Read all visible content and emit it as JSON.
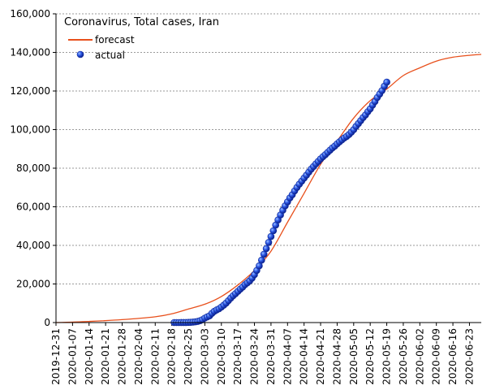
{
  "chart_data": {
    "type": "line",
    "title": "Coronavirus, Total cases, Iran",
    "xlabel": "",
    "ylabel": "",
    "ylim": [
      0,
      160000
    ],
    "y_ticks": [
      "0",
      "20,000",
      "40,000",
      "60,000",
      "80,000",
      "100,000",
      "120,000",
      "140,000",
      "160,000"
    ],
    "x_ticks": [
      "2019-12-31",
      "2020-01-07",
      "2020-01-14",
      "2020-01-21",
      "2020-01-28",
      "2020-02-04",
      "2020-02-11",
      "2020-02-18",
      "2020-02-25",
      "2020-03-03",
      "2020-03-10",
      "2020-03-17",
      "2020-03-24",
      "2020-03-31",
      "2020-04-07",
      "2020-04-14",
      "2020-04-21",
      "2020-04-28",
      "2020-05-05",
      "2020-05-12",
      "2020-05-19",
      "2020-05-26",
      "2020-06-02",
      "2020-06-09",
      "2020-06-16",
      "2020-06-23"
    ],
    "xlim": [
      "2019-12-31",
      "2020-06-28"
    ],
    "grid": "horizontal dashed",
    "legend_position": "top-left",
    "series": [
      {
        "name": "forecast",
        "color": "#e8501c",
        "style": "line",
        "x": [
          "2019-12-31",
          "2020-01-14",
          "2020-01-28",
          "2020-02-11",
          "2020-02-18",
          "2020-02-25",
          "2020-03-03",
          "2020-03-10",
          "2020-03-17",
          "2020-03-24",
          "2020-03-31",
          "2020-04-07",
          "2020-04-14",
          "2020-04-21",
          "2020-04-28",
          "2020-05-05",
          "2020-05-12",
          "2020-05-19",
          "2020-05-26",
          "2020-06-02",
          "2020-06-09",
          "2020-06-16",
          "2020-06-23",
          "2020-06-28"
        ],
        "y": [
          0,
          600,
          1500,
          3000,
          4500,
          7000,
          9500,
          13500,
          19500,
          27000,
          37000,
          52000,
          67000,
          82000,
          94000,
          106000,
          115000,
          121000,
          128000,
          132000,
          135500,
          137500,
          138500,
          139000
        ]
      },
      {
        "name": "actual",
        "color": "#1f3fd6",
        "style": "markers",
        "x": [
          "2020-02-19",
          "2020-02-20",
          "2020-02-21",
          "2020-02-22",
          "2020-02-23",
          "2020-02-24",
          "2020-02-25",
          "2020-02-26",
          "2020-02-27",
          "2020-02-28",
          "2020-02-29",
          "2020-03-01",
          "2020-03-02",
          "2020-03-03",
          "2020-03-04",
          "2020-03-05",
          "2020-03-06",
          "2020-03-07",
          "2020-03-08",
          "2020-03-09",
          "2020-03-10",
          "2020-03-11",
          "2020-03-12",
          "2020-03-13",
          "2020-03-14",
          "2020-03-15",
          "2020-03-16",
          "2020-03-17",
          "2020-03-18",
          "2020-03-19",
          "2020-03-20",
          "2020-03-21",
          "2020-03-22",
          "2020-03-23",
          "2020-03-24",
          "2020-03-25",
          "2020-03-26",
          "2020-03-27",
          "2020-03-28",
          "2020-03-29",
          "2020-03-30",
          "2020-03-31",
          "2020-04-01",
          "2020-04-02",
          "2020-04-03",
          "2020-04-04",
          "2020-04-05",
          "2020-04-06",
          "2020-04-07",
          "2020-04-08",
          "2020-04-09",
          "2020-04-10",
          "2020-04-11",
          "2020-04-12",
          "2020-04-13",
          "2020-04-14",
          "2020-04-15",
          "2020-04-16",
          "2020-04-17",
          "2020-04-18",
          "2020-04-19",
          "2020-04-20",
          "2020-04-21",
          "2020-04-22",
          "2020-04-23",
          "2020-04-24",
          "2020-04-25",
          "2020-04-26",
          "2020-04-27",
          "2020-04-28",
          "2020-04-29",
          "2020-04-30",
          "2020-05-01",
          "2020-05-02",
          "2020-05-03",
          "2020-05-04",
          "2020-05-05",
          "2020-05-06",
          "2020-05-07",
          "2020-05-08",
          "2020-05-09",
          "2020-05-10",
          "2020-05-11",
          "2020-05-12",
          "2020-05-13",
          "2020-05-14",
          "2020-05-15",
          "2020-05-16",
          "2020-05-17",
          "2020-05-18",
          "2020-05-19"
        ],
        "y": [
          2,
          5,
          18,
          28,
          43,
          61,
          95,
          139,
          245,
          388,
          593,
          978,
          1501,
          2336,
          2922,
          3513,
          4747,
          5823,
          6566,
          7161,
          8042,
          9000,
          10075,
          11364,
          12729,
          13938,
          14991,
          16169,
          17361,
          18407,
          19644,
          20610,
          21638,
          23049,
          24811,
          27017,
          29406,
          32332,
          35408,
          38309,
          41495,
          44605,
          47593,
          50468,
          53183,
          55743,
          58226,
          60500,
          62589,
          64586,
          66220,
          68192,
          70029,
          71686,
          73303,
          74877,
          76389,
          77995,
          79494,
          80868,
          82211,
          83505,
          84802,
          85996,
          87026,
          88194,
          89328,
          90481,
          91472,
          92584,
          93657,
          94640,
          95646,
          96448,
          97424,
          98647,
          99970,
          101650,
          103135,
          104691,
          106220,
          107603,
          109286,
          110767,
          112725,
          114533,
          116635,
          118392,
          120198,
          122492,
          124603
        ]
      }
    ]
  }
}
